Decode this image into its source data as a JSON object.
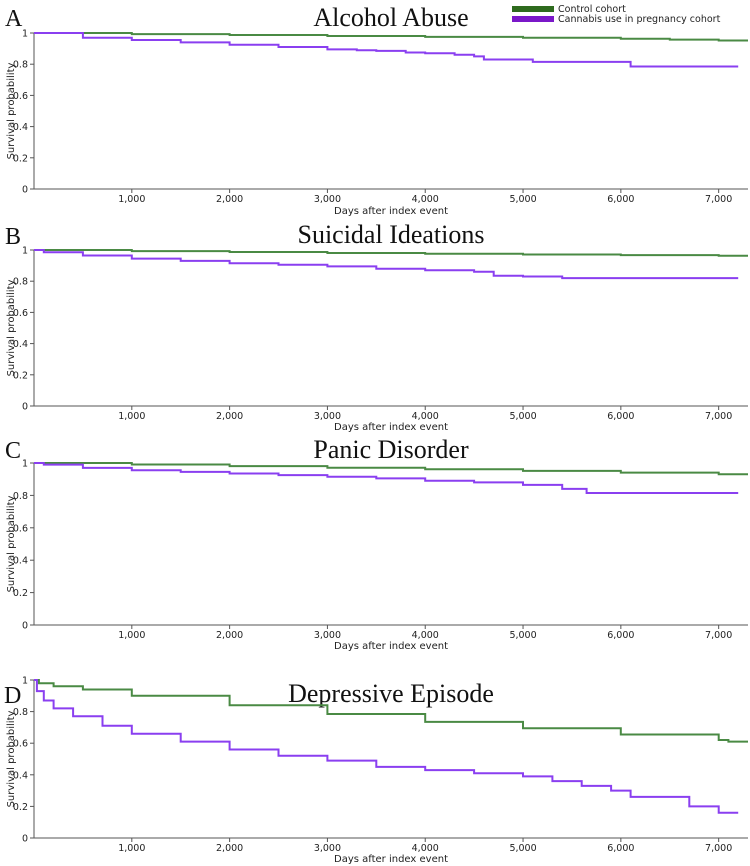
{
  "legend": {
    "entries": [
      {
        "name": "Control cohort",
        "color": "#2e6b1e"
      },
      {
        "name": "Cannabis use in pregnancy cohort",
        "color": "#7a18c8"
      }
    ]
  },
  "chart_data": [
    {
      "panel": "A",
      "type": "line",
      "title": "Alcohol Abuse",
      "xlabel": "Days after index event",
      "ylabel": "Survival probability",
      "xlim": [
        0,
        7300
      ],
      "ylim": [
        0,
        1
      ],
      "x_ticks": [
        1000,
        2000,
        3000,
        4000,
        5000,
        6000,
        7000
      ],
      "x_tick_labels": [
        "1,000",
        "2,000",
        "3,000",
        "4,000",
        "5,000",
        "6,000",
        "7,000"
      ],
      "y_ticks": [
        0,
        0.2,
        0.4,
        0.6,
        0.8,
        1
      ],
      "y_tick_labels": [
        "0",
        "0.2",
        "0.4",
        "0.6",
        "0.8",
        "1"
      ],
      "series": [
        {
          "name": "Control cohort",
          "color": "#4a8a44",
          "x": [
            0,
            1000,
            2000,
            3000,
            4000,
            5000,
            6000,
            6500,
            7000,
            7300
          ],
          "y": [
            1.0,
            0.993,
            0.987,
            0.981,
            0.975,
            0.969,
            0.963,
            0.958,
            0.952,
            0.952
          ]
        },
        {
          "name": "Cannabis use in pregnancy cohort",
          "color": "#8a3ff0",
          "x": [
            0,
            500,
            1000,
            1500,
            2000,
            2500,
            3000,
            3300,
            3500,
            3800,
            4000,
            4300,
            4500,
            4600,
            5100,
            6100,
            7200
          ],
          "y": [
            1.0,
            0.97,
            0.955,
            0.94,
            0.925,
            0.91,
            0.895,
            0.89,
            0.885,
            0.875,
            0.87,
            0.86,
            0.85,
            0.83,
            0.815,
            0.785,
            0.785
          ]
        }
      ]
    },
    {
      "panel": "B",
      "type": "line",
      "title": "Suicidal Ideations",
      "xlabel": "Days after index event",
      "ylabel": "Survival probability",
      "xlim": [
        0,
        7300
      ],
      "ylim": [
        0,
        1
      ],
      "x_ticks": [
        1000,
        2000,
        3000,
        4000,
        5000,
        6000,
        7000
      ],
      "x_tick_labels": [
        "1,000",
        "2,000",
        "3,000",
        "4,000",
        "5,000",
        "6,000",
        "7,000"
      ],
      "y_ticks": [
        0,
        0.2,
        0.4,
        0.6,
        0.8,
        1
      ],
      "y_tick_labels": [
        "0",
        "0.2",
        "0.4",
        "0.6",
        "0.8",
        "1"
      ],
      "series": [
        {
          "name": "Control cohort",
          "color": "#4a8a44",
          "x": [
            0,
            1000,
            2000,
            3000,
            4000,
            5000,
            6000,
            7000,
            7300
          ],
          "y": [
            1.0,
            0.993,
            0.987,
            0.981,
            0.976,
            0.971,
            0.967,
            0.963,
            0.963
          ]
        },
        {
          "name": "Cannabis use in pregnancy cohort",
          "color": "#8a3ff0",
          "x": [
            0,
            100,
            500,
            1000,
            1500,
            2000,
            2500,
            3000,
            3500,
            4000,
            4500,
            4700,
            5000,
            5400,
            6000,
            7200
          ],
          "y": [
            1.0,
            0.985,
            0.965,
            0.945,
            0.93,
            0.915,
            0.905,
            0.895,
            0.88,
            0.87,
            0.86,
            0.835,
            0.83,
            0.82,
            0.82,
            0.82
          ]
        }
      ]
    },
    {
      "panel": "C",
      "type": "line",
      "title": "Panic Disorder",
      "xlabel": "Days after index event",
      "ylabel": "Survival probability",
      "xlim": [
        0,
        7300
      ],
      "ylim": [
        0,
        1
      ],
      "x_ticks": [
        1000,
        2000,
        3000,
        4000,
        5000,
        6000,
        7000
      ],
      "x_tick_labels": [
        "1,000",
        "2,000",
        "3,000",
        "4,000",
        "5,000",
        "6,000",
        "7,000"
      ],
      "y_ticks": [
        0,
        0.2,
        0.4,
        0.6,
        0.8,
        1
      ],
      "y_tick_labels": [
        "0",
        "0.2",
        "0.4",
        "0.6",
        "0.8",
        "1"
      ],
      "series": [
        {
          "name": "Control cohort",
          "color": "#4a8a44",
          "x": [
            0,
            1000,
            2000,
            3000,
            4000,
            5000,
            6000,
            7000,
            7300
          ],
          "y": [
            1.0,
            0.991,
            0.981,
            0.971,
            0.961,
            0.951,
            0.941,
            0.93,
            0.93
          ]
        },
        {
          "name": "Cannabis use in pregnancy cohort",
          "color": "#8a3ff0",
          "x": [
            0,
            100,
            500,
            1000,
            1500,
            2000,
            2500,
            3000,
            3500,
            4000,
            4500,
            5000,
            5400,
            5650,
            6000,
            7200
          ],
          "y": [
            1.0,
            0.99,
            0.97,
            0.955,
            0.945,
            0.935,
            0.925,
            0.915,
            0.905,
            0.89,
            0.88,
            0.865,
            0.84,
            0.815,
            0.815,
            0.815
          ]
        }
      ]
    },
    {
      "panel": "D",
      "type": "line",
      "title": "Depressive Episode",
      "xlabel": "Days after index event",
      "ylabel": "Survival probability",
      "xlim": [
        0,
        7300
      ],
      "ylim": [
        0,
        1
      ],
      "x_ticks": [
        1000,
        2000,
        3000,
        4000,
        5000,
        6000,
        7000
      ],
      "x_tick_labels": [
        "1,000",
        "2,000",
        "3,000",
        "4,000",
        "5,000",
        "6,000",
        "7,000"
      ],
      "y_ticks": [
        0,
        0.2,
        0.4,
        0.6,
        0.8,
        1
      ],
      "y_tick_labels": [
        "0",
        "0.2",
        "0.4",
        "0.6",
        "0.8",
        "1"
      ],
      "series": [
        {
          "name": "Control cohort",
          "color": "#4a8a44",
          "x": [
            0,
            50,
            200,
            500,
            1000,
            2000,
            3000,
            4000,
            5000,
            6000,
            7000,
            7100,
            7300
          ],
          "y": [
            1.0,
            0.98,
            0.96,
            0.94,
            0.9,
            0.84,
            0.785,
            0.735,
            0.695,
            0.655,
            0.62,
            0.61,
            0.61
          ]
        },
        {
          "name": "Cannabis use in pregnancy cohort",
          "color": "#8a3ff0",
          "x": [
            0,
            30,
            100,
            200,
            400,
            700,
            1000,
            1500,
            2000,
            2500,
            3000,
            3500,
            4000,
            4500,
            5000,
            5300,
            5600,
            5900,
            6100,
            6600,
            6700,
            7000,
            7200
          ],
          "y": [
            1.0,
            0.93,
            0.87,
            0.82,
            0.77,
            0.71,
            0.66,
            0.61,
            0.56,
            0.52,
            0.49,
            0.45,
            0.43,
            0.41,
            0.39,
            0.36,
            0.33,
            0.3,
            0.26,
            0.26,
            0.2,
            0.16,
            0.16
          ]
        }
      ]
    }
  ]
}
